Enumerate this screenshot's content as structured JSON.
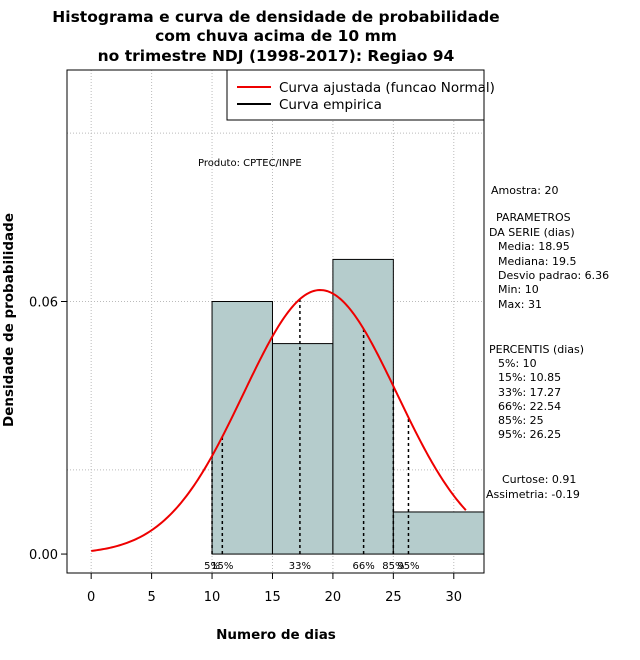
{
  "chart_data": {
    "type": "histogram",
    "title": [
      "Histograma e curva de densidade de probabilidade",
      "com chuva acima de 10 mm",
      "no trimestre NDJ (1998-2017): Regiao 94"
    ],
    "xlabel": "Numero de dias",
    "ylabel": "Densidade de probabilidade",
    "xlim": [
      -2,
      32.5
    ],
    "ylim": [
      -0.0045,
      0.115
    ],
    "x_ticks": [
      0,
      5,
      10,
      15,
      20,
      25,
      30
    ],
    "y_ticks": [
      0.0,
      0.06
    ],
    "y_tick_labels": [
      "0.00",
      "0.06"
    ],
    "grid": true,
    "bins": [
      {
        "from": 10,
        "to": 15,
        "density": 0.06
      },
      {
        "from": 15,
        "to": 20,
        "density": 0.05
      },
      {
        "from": 20,
        "to": 25,
        "density": 0.07
      },
      {
        "from": 25,
        "to": 35,
        "density": 0.01
      }
    ],
    "series": [
      {
        "name": "Curva ajustada (funcao Normal)",
        "type": "normal_density",
        "mean": 18.95,
        "sd": 6.36,
        "x_range": [
          0,
          31
        ],
        "color": "#ee0000"
      },
      {
        "name": "Curva empirica",
        "color": "#000000"
      }
    ],
    "legend_position": "top-right",
    "annotation": "Produto: CPTEC/INPE",
    "percentile_lines": [
      {
        "x": 10,
        "label": "5%"
      },
      {
        "x": 10.85,
        "label": "15%"
      },
      {
        "x": 17.27,
        "label": "33%"
      },
      {
        "x": 22.54,
        "label": "66%"
      },
      {
        "x": 25,
        "label": "85%"
      },
      {
        "x": 26.25,
        "label": "95%"
      }
    ],
    "side_text": {
      "amostra": "Amostra: 20",
      "param_title_1": "PARAMETROS",
      "param_title_2": "DA SERIE (dias)",
      "media": "Media: 18.95",
      "mediana": "Mediana: 19.5",
      "desvio": "Desvio padrao: 6.36",
      "min": "Min: 10",
      "max": "Max: 31",
      "perc_title": "PERCENTIS (dias)",
      "p5": "5%: 10",
      "p15": "15%: 10.85",
      "p33": "33%: 17.27",
      "p66": "66%: 22.54",
      "p85": "85%: 25",
      "p95": "95%: 26.25",
      "curtose": "Curtose: 0.91",
      "assimetria": "Assimetria: -0.19"
    },
    "colors": {
      "bar_fill": "#b5cccc",
      "bar_stroke": "#000000",
      "curve": "#ee0000",
      "grid": "#bbbbbb"
    }
  }
}
